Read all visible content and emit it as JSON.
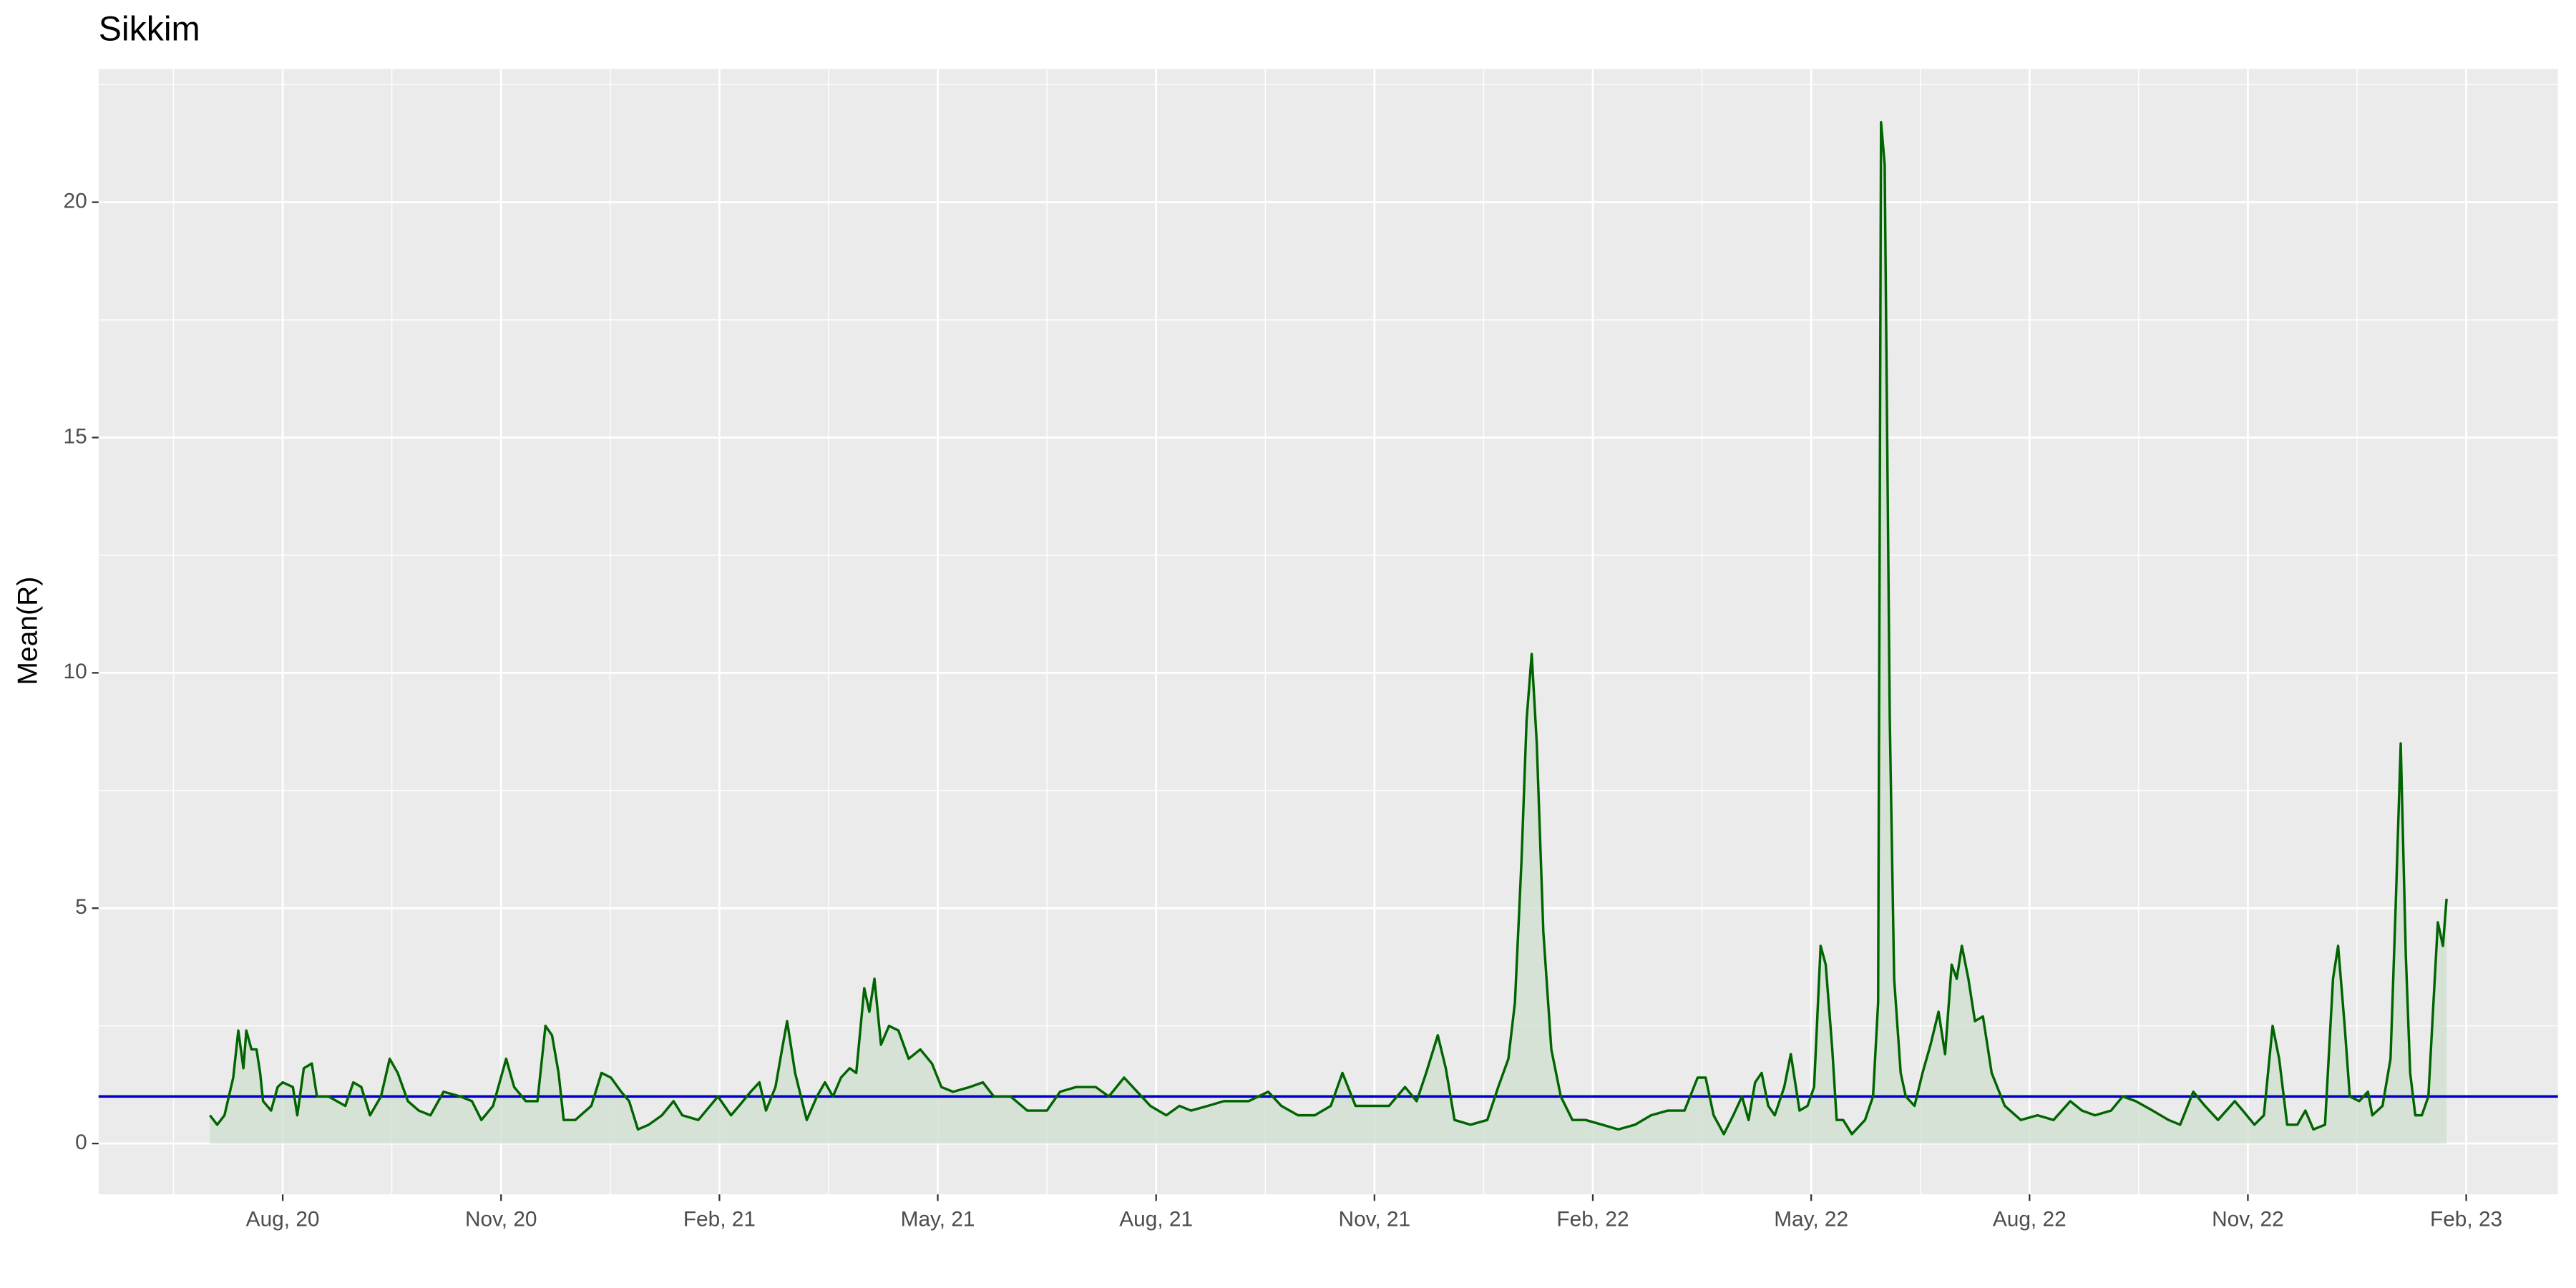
{
  "chart_data": {
    "type": "line",
    "title": "Sikkim",
    "y_label": "Mean(R)",
    "x": [
      6.0,
      6.1,
      6.2,
      6.32,
      6.39,
      6.46,
      6.5,
      6.57,
      6.64,
      6.69,
      6.73,
      6.84,
      6.93,
      7.0,
      7.14,
      7.2,
      7.29,
      7.4,
      7.47,
      7.63,
      7.86,
      7.97,
      8.08,
      8.2,
      8.35,
      8.47,
      8.58,
      8.72,
      8.87,
      9.03,
      9.21,
      9.44,
      9.6,
      9.73,
      9.89,
      10.07,
      10.18,
      10.34,
      10.5,
      10.61,
      10.7,
      10.79,
      10.86,
      11.02,
      11.24,
      11.38,
      11.51,
      11.65,
      11.76,
      11.88,
      12.03,
      12.21,
      12.37,
      12.49,
      12.71,
      12.98,
      13.16,
      13.27,
      13.43,
      13.55,
      13.64,
      13.77,
      13.86,
      13.93,
      14.04,
      14.2,
      14.34,
      14.45,
      14.56,
      14.67,
      14.79,
      14.88,
      14.99,
      15.06,
      15.13,
      15.22,
      15.33,
      15.46,
      15.6,
      15.76,
      15.92,
      16.05,
      16.21,
      16.44,
      16.62,
      16.77,
      17.0,
      17.23,
      17.5,
      17.68,
      17.9,
      18.17,
      18.35,
      18.56,
      18.74,
      18.92,
      19.14,
      19.32,
      19.48,
      19.71,
      19.93,
      20.27,
      20.54,
      20.72,
      20.95,
      21.18,
      21.4,
      21.56,
      21.74,
      21.97,
      22.2,
      22.42,
      22.58,
      22.71,
      22.87,
      22.98,
      23.1,
      23.32,
      23.55,
      23.7,
      23.84,
      23.93,
      24.02,
      24.09,
      24.16,
      24.23,
      24.32,
      24.43,
      24.56,
      24.72,
      24.9,
      25.13,
      25.35,
      25.58,
      25.8,
      26.03,
      26.26,
      26.44,
      26.55,
      26.66,
      26.8,
      26.93,
      27.05,
      27.14,
      27.23,
      27.32,
      27.41,
      27.5,
      27.63,
      27.72,
      27.84,
      27.95,
      28.04,
      28.13,
      28.2,
      28.29,
      28.35,
      28.44,
      28.56,
      28.74,
      28.85,
      28.92,
      28.96,
      29.01,
      29.08,
      29.14,
      29.23,
      29.3,
      29.42,
      29.53,
      29.64,
      29.75,
      29.84,
      29.93,
      30.0,
      30.07,
      30.16,
      30.25,
      30.36,
      30.48,
      30.66,
      30.88,
      31.11,
      31.33,
      31.56,
      31.72,
      31.9,
      32.12,
      32.28,
      32.46,
      32.69,
      32.91,
      33.07,
      33.25,
      33.41,
      33.59,
      33.82,
      33.93,
      34.09,
      34.22,
      34.34,
      34.43,
      34.54,
      34.68,
      34.79,
      34.9,
      35.06,
      35.17,
      35.24,
      35.33,
      35.4,
      35.53,
      35.65,
      35.71,
      35.85,
      35.96,
      36.03,
      36.1,
      36.17,
      36.23,
      36.3,
      36.39,
      36.48,
      36.55,
      36.61,
      36.68,
      36.73
    ],
    "values": [
      0.6,
      0.4,
      0.6,
      1.4,
      2.4,
      1.6,
      2.4,
      2.0,
      2.0,
      1.5,
      0.9,
      0.7,
      1.2,
      1.3,
      1.2,
      0.6,
      1.6,
      1.7,
      1.0,
      1.0,
      0.8,
      1.3,
      1.2,
      0.6,
      1.0,
      1.8,
      1.5,
      0.9,
      0.7,
      0.6,
      1.1,
      1.0,
      0.9,
      0.5,
      0.8,
      1.8,
      1.2,
      0.9,
      0.9,
      2.5,
      2.3,
      1.5,
      0.5,
      0.5,
      0.8,
      1.5,
      1.4,
      1.1,
      0.9,
      0.3,
      0.4,
      0.6,
      0.9,
      0.6,
      0.5,
      1.0,
      0.6,
      0.8,
      1.1,
      1.3,
      0.7,
      1.2,
      2.0,
      2.6,
      1.5,
      0.5,
      1.0,
      1.3,
      1.0,
      1.4,
      1.6,
      1.5,
      3.3,
      2.8,
      3.5,
      2.1,
      2.5,
      2.4,
      1.8,
      2.0,
      1.7,
      1.2,
      1.1,
      1.2,
      1.3,
      1.0,
      1.0,
      0.7,
      0.7,
      1.1,
      1.2,
      1.2,
      1.0,
      1.4,
      1.1,
      0.8,
      0.6,
      0.8,
      0.7,
      0.8,
      0.9,
      0.9,
      1.1,
      0.8,
      0.6,
      0.6,
      0.8,
      1.5,
      0.8,
      0.8,
      0.8,
      1.2,
      0.9,
      1.5,
      2.3,
      1.6,
      0.5,
      0.4,
      0.5,
      1.2,
      1.8,
      3.0,
      6.0,
      9.0,
      10.4,
      8.5,
      4.5,
      2.0,
      1.0,
      0.5,
      0.5,
      0.4,
      0.3,
      0.4,
      0.6,
      0.7,
      0.7,
      1.4,
      1.4,
      0.6,
      0.2,
      0.6,
      1.0,
      0.5,
      1.3,
      1.5,
      0.8,
      0.6,
      1.2,
      1.9,
      0.7,
      0.8,
      1.2,
      4.2,
      3.8,
      2.0,
      0.5,
      0.5,
      0.2,
      0.5,
      1.0,
      3.0,
      21.7,
      20.8,
      9.0,
      3.5,
      1.5,
      1.0,
      0.8,
      1.5,
      2.1,
      2.8,
      1.9,
      3.8,
      3.5,
      4.2,
      3.5,
      2.6,
      2.7,
      1.5,
      0.8,
      0.5,
      0.6,
      0.5,
      0.9,
      0.7,
      0.6,
      0.7,
      1.0,
      0.9,
      0.7,
      0.5,
      0.4,
      1.1,
      0.8,
      0.5,
      0.9,
      0.7,
      0.4,
      0.6,
      2.5,
      1.8,
      0.4,
      0.4,
      0.7,
      0.3,
      0.4,
      3.5,
      4.2,
      2.5,
      1.0,
      0.9,
      1.1,
      0.6,
      0.8,
      1.8,
      5.0,
      8.5,
      4.0,
      1.5,
      0.6,
      0.6,
      1.0,
      3.0,
      4.7,
      4.2,
      5.2
    ],
    "color": "#006400",
    "fill_color": "#cfe0cf",
    "hline": 1,
    "hline_color": "#0000CD",
    "xlim": [
      4.47,
      38.26
    ],
    "ylim": [
      -1.08,
      22.83
    ],
    "xticks": [
      {
        "value": 7,
        "label": "Aug, 20"
      },
      {
        "value": 10,
        "label": "Nov, 20"
      },
      {
        "value": 13,
        "label": "Feb, 21"
      },
      {
        "value": 16,
        "label": "May, 21"
      },
      {
        "value": 19,
        "label": "Aug, 21"
      },
      {
        "value": 22,
        "label": "Nov, 21"
      },
      {
        "value": 25,
        "label": "Feb, 22"
      },
      {
        "value": 28,
        "label": "May, 22"
      },
      {
        "value": 31,
        "label": "Aug, 22"
      },
      {
        "value": 34,
        "label": "Nov, 22"
      },
      {
        "value": 37,
        "label": "Feb, 23"
      }
    ],
    "yticks": [
      0,
      5,
      10,
      15,
      20
    ],
    "grid": true
  }
}
